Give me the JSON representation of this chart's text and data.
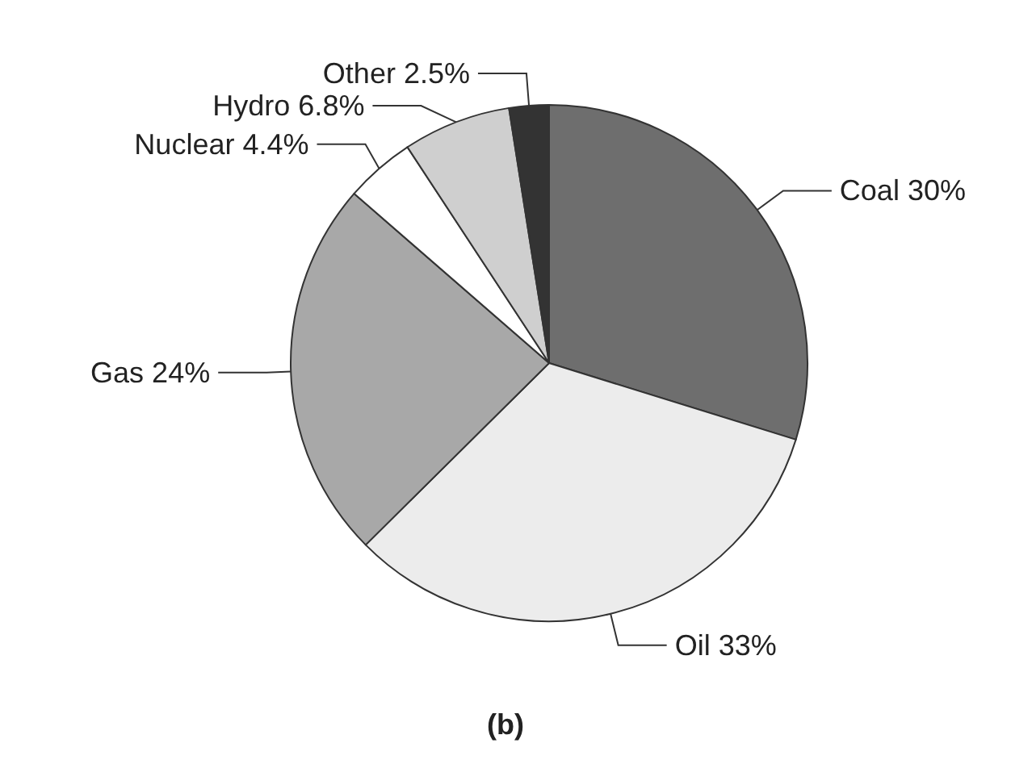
{
  "chart_data": {
    "type": "pie",
    "title": "(b)",
    "categories": [
      "Coal",
      "Oil",
      "Gas",
      "Nuclear",
      "Hydro",
      "Other"
    ],
    "values": [
      30,
      33,
      24,
      4.4,
      6.8,
      2.5
    ],
    "value_labels": [
      "30%",
      "33%",
      "24%",
      "4.4%",
      "6.8%",
      "2.5%"
    ],
    "colors": [
      "#6e6e6e",
      "#ececec",
      "#a8a8a8",
      "#ffffff",
      "#cfcfcf",
      "#333333"
    ],
    "legend": false
  }
}
